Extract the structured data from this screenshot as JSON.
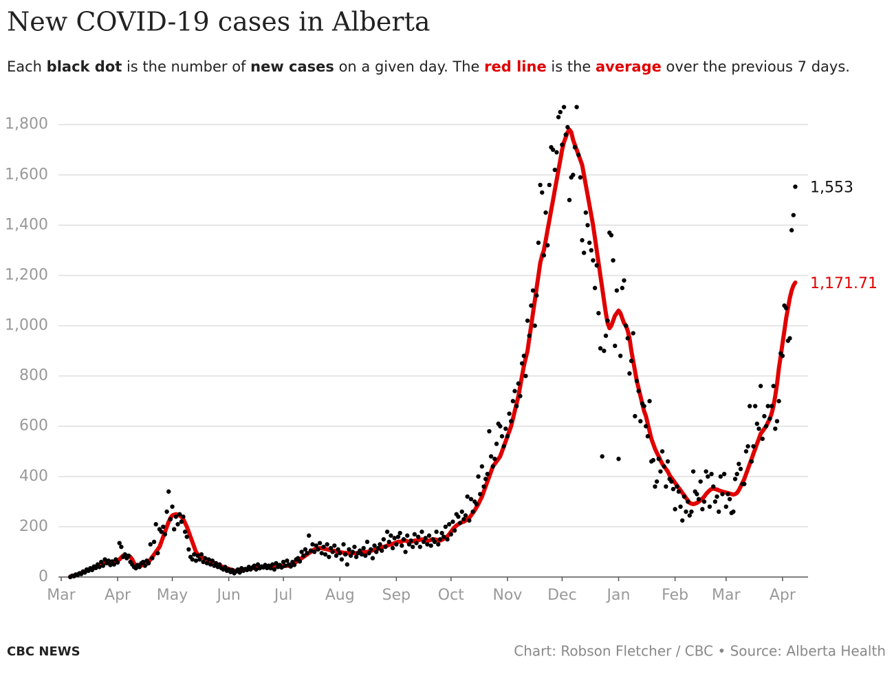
{
  "chart_data": {
    "type": "line",
    "title": "New COVID-19 cases in Alberta",
    "subtitle": [
      {
        "text": "Each "
      },
      {
        "text": "black dot",
        "bold": true
      },
      {
        "text": " is the number of "
      },
      {
        "text": "new cases",
        "bold": true
      },
      {
        "text": " on a given day. The "
      },
      {
        "text": "red line",
        "bold": true,
        "color": "#e00000"
      },
      {
        "text": " is the "
      },
      {
        "text": "average",
        "bold": true,
        "color": "#e00000"
      },
      {
        "text": " over the previous 7 days."
      }
    ],
    "brand": "CBC NEWS",
    "credit": "Chart: Robson Fletcher / CBC • Source: Alberta Health",
    "xlim": [
      -1.5,
      410
    ],
    "xticks": [
      {
        "value": 0,
        "label": "Mar"
      },
      {
        "value": 31,
        "label": "Apr"
      },
      {
        "value": 61,
        "label": "May"
      },
      {
        "value": 92,
        "label": "Jun"
      },
      {
        "value": 122,
        "label": "Jul"
      },
      {
        "value": 153,
        "label": "Aug"
      },
      {
        "value": 184,
        "label": "Sep"
      },
      {
        "value": 214,
        "label": "Oct"
      },
      {
        "value": 245,
        "label": "Nov"
      },
      {
        "value": 275,
        "label": "Dec"
      },
      {
        "value": 306,
        "label": "Jan"
      },
      {
        "value": 337,
        "label": "Feb"
      },
      {
        "value": 365,
        "label": "Mar"
      },
      {
        "value": 396,
        "label": "Apr"
      }
    ],
    "ylim": [
      0,
      1880
    ],
    "yticks": [
      0,
      200,
      400,
      600,
      800,
      {
        "value": 1000,
        "label": "1,000"
      },
      {
        "value": 1200,
        "label": "1,200"
      },
      {
        "value": 1400,
        "label": "1,400"
      },
      {
        "value": 1600,
        "label": "1,600"
      },
      {
        "value": 1800,
        "label": "1,800"
      }
    ],
    "grid": true,
    "end_labels": [
      "1,553",
      "1,171.71"
    ],
    "x": [
      5,
      6,
      7,
      8,
      9,
      10,
      11,
      12,
      13,
      14,
      15,
      16,
      17,
      18,
      19,
      20,
      21,
      22,
      23,
      24,
      25,
      26,
      27,
      28,
      29,
      30,
      31,
      32,
      33,
      34,
      35,
      36,
      37,
      38,
      39,
      40,
      41,
      42,
      43,
      44,
      45,
      46,
      47,
      48,
      49,
      50,
      51,
      52,
      53,
      54,
      55,
      56,
      57,
      58,
      59,
      60,
      61,
      62,
      63,
      64,
      65,
      66,
      67,
      68,
      69,
      70,
      71,
      72,
      73,
      74,
      75,
      76,
      77,
      78,
      79,
      80,
      81,
      82,
      83,
      84,
      85,
      86,
      87,
      88,
      89,
      90,
      91,
      92,
      93,
      94,
      95,
      96,
      97,
      98,
      99,
      100,
      101,
      102,
      103,
      104,
      105,
      106,
      107,
      108,
      109,
      110,
      111,
      112,
      113,
      114,
      115,
      116,
      117,
      118,
      119,
      120,
      121,
      122,
      123,
      124,
      125,
      126,
      127,
      128,
      129,
      130,
      131,
      132,
      133,
      134,
      135,
      136,
      137,
      138,
      139,
      140,
      141,
      142,
      143,
      144,
      145,
      146,
      147,
      148,
      149,
      150,
      151,
      152,
      153,
      154,
      155,
      156,
      157,
      158,
      159,
      160,
      161,
      162,
      163,
      164,
      165,
      166,
      167,
      168,
      169,
      170,
      171,
      172,
      173,
      174,
      175,
      176,
      177,
      178,
      179,
      180,
      181,
      182,
      183,
      184,
      185,
      186,
      187,
      188,
      189,
      190,
      191,
      192,
      193,
      194,
      195,
      196,
      197,
      198,
      199,
      200,
      201,
      202,
      203,
      204,
      205,
      206,
      207,
      208,
      209,
      210,
      211,
      212,
      213,
      214,
      215,
      216,
      217,
      218,
      219,
      220,
      221,
      222,
      223,
      224,
      225,
      226,
      227,
      228,
      229,
      230,
      231,
      232,
      233,
      234,
      235,
      236,
      237,
      238,
      239,
      240,
      241,
      242,
      243,
      244,
      245,
      246,
      247,
      248,
      249,
      250,
      251,
      252,
      253,
      254,
      255,
      256,
      257,
      258,
      259,
      260,
      261,
      262,
      263,
      264,
      265,
      266,
      267,
      268,
      269,
      270,
      271,
      272,
      273,
      274,
      275,
      276,
      277,
      278,
      279,
      280,
      281,
      282,
      283,
      284,
      285,
      286,
      287,
      288,
      289,
      290,
      291,
      292,
      293,
      294,
      295,
      296,
      297,
      298,
      299,
      300,
      301,
      302,
      303,
      304,
      305,
      306,
      307,
      308,
      309,
      310,
      311,
      312,
      313,
      314,
      315,
      316,
      317,
      318,
      319,
      320,
      321,
      322,
      323,
      324,
      325,
      326,
      327,
      328,
      329,
      330,
      331,
      332,
      333,
      334,
      335,
      336,
      337,
      338,
      339,
      340,
      341,
      342,
      343,
      344,
      345,
      346,
      347,
      348,
      349,
      350,
      351,
      352,
      353,
      354,
      355,
      356,
      357,
      358,
      359,
      360,
      361,
      362,
      363,
      364,
      365,
      366,
      367,
      368,
      369,
      370,
      371,
      372,
      373,
      374,
      375,
      376,
      377,
      378,
      379,
      380,
      381,
      382,
      383,
      384,
      385,
      386,
      387,
      388,
      389,
      390,
      391,
      392,
      393,
      394,
      395,
      396,
      397,
      398,
      399,
      400,
      401,
      402,
      403
    ],
    "series": [
      {
        "name": "New cases",
        "style": "dots",
        "color": "#000000",
        "values": [
          0,
          5,
          3,
          10,
          8,
          15,
          12,
          22,
          18,
          30,
          25,
          35,
          28,
          42,
          36,
          50,
          40,
          60,
          45,
          70,
          55,
          65,
          48,
          62,
          50,
          70,
          58,
          135,
          120,
          80,
          90,
          75,
          85,
          60,
          50,
          40,
          35,
          48,
          40,
          55,
          60,
          45,
          65,
          55,
          130,
          75,
          140,
          210,
          95,
          190,
          180,
          200,
          170,
          260,
          340,
          230,
          280,
          190,
          240,
          210,
          250,
          220,
          240,
          180,
          160,
          110,
          80,
          70,
          90,
          65,
          85,
          70,
          90,
          60,
          75,
          55,
          70,
          50,
          65,
          45,
          55,
          40,
          50,
          35,
          30,
          40,
          25,
          30,
          20,
          28,
          15,
          22,
          30,
          18,
          35,
          25,
          32,
          28,
          40,
          30,
          38,
          45,
          30,
          50,
          35,
          42,
          38,
          48,
          36,
          45,
          35,
          50,
          30,
          55,
          40,
          48,
          38,
          60,
          45,
          65,
          50,
          42,
          60,
          48,
          70,
          75,
          62,
          100,
          85,
          110,
          95,
          165,
          105,
          130,
          100,
          125,
          110,
          135,
          95,
          120,
          90,
          130,
          80,
          115,
          100,
          125,
          85,
          110,
          95,
          70,
          130,
          90,
          50,
          110,
          85,
          100,
          120,
          80,
          95,
          105,
          90,
          115,
          85,
          140,
          95,
          110,
          75,
          125,
          100,
          115,
          130,
          105,
          150,
          120,
          180,
          140,
          165,
          115,
          155,
          130,
          160,
          175,
          125,
          150,
          100,
          165,
          130,
          145,
          120,
          170,
          135,
          160,
          120,
          180,
          140,
          155,
          130,
          165,
          125,
          150,
          140,
          180,
          130,
          150,
          175,
          160,
          200,
          150,
          210,
          170,
          220,
          185,
          250,
          240,
          215,
          260,
          230,
          245,
          320,
          225,
          310,
          260,
          300,
          290,
          400,
          330,
          440,
          360,
          390,
          410,
          580,
          480,
          440,
          470,
          530,
          610,
          600,
          560,
          520,
          590,
          560,
          650,
          620,
          700,
          740,
          680,
          770,
          720,
          850,
          880,
          800,
          1020,
          960,
          1080,
          1140,
          1000,
          1120,
          1330,
          1560,
          1530,
          1280,
          1450,
          1320,
          1560,
          1710,
          1700,
          1620,
          1690,
          1830,
          1850,
          1720,
          1870,
          1760,
          1790,
          1500,
          1590,
          1600,
          1710,
          1870,
          1680,
          1590,
          1340,
          1290,
          1450,
          1400,
          1330,
          1300,
          1260,
          1150,
          1240,
          1050,
          910,
          480,
          900,
          960,
          1020,
          1370,
          1360,
          1260,
          920,
          1140,
          470,
          880,
          1150,
          1180,
          1000,
          950,
          810,
          860,
          970,
          640,
          780,
          740,
          620,
          690,
          680,
          600,
          560,
          700,
          460,
          465,
          360,
          380,
          470,
          420,
          500,
          440,
          360,
          460,
          390,
          380,
          350,
          270,
          360,
          340,
          280,
          225,
          320,
          260,
          300,
          245,
          260,
          420,
          340,
          330,
          310,
          380,
          270,
          300,
          420,
          400,
          280,
          410,
          360,
          300,
          320,
          260,
          400,
          330,
          410,
          280,
          330,
          310,
          255,
          260,
          390,
          410,
          450,
          430,
          370,
          370,
          500,
          520,
          680,
          460,
          520,
          680,
          610,
          590,
          760,
          550,
          640,
          600,
          680,
          630,
          680,
          760,
          590,
          620,
          700,
          890,
          880,
          1080,
          1070,
          940,
          950,
          1380,
          1440,
          1553
        ]
      },
      {
        "name": "7-day average",
        "style": "line",
        "color": "#e00000",
        "values": [
          2,
          4,
          6,
          8,
          10,
          13,
          16,
          19,
          22,
          25,
          28,
          30,
          33,
          36,
          40,
          44,
          48,
          52,
          55,
          58,
          60,
          58,
          55,
          55,
          58,
          62,
          65,
          70,
          78,
          85,
          85,
          84,
          82,
          80,
          70,
          55,
          45,
          42,
          44,
          46,
          48,
          50,
          52,
          60,
          70,
          80,
          90,
          100,
          110,
          120,
          140,
          160,
          180,
          200,
          220,
          235,
          245,
          248,
          250,
          248,
          245,
          240,
          230,
          215,
          200,
          180,
          160,
          140,
          120,
          100,
          90,
          85,
          80,
          76,
          73,
          70,
          67,
          64,
          60,
          56,
          52,
          48,
          45,
          42,
          40,
          38,
          35,
          32,
          30,
          28,
          25,
          25,
          26,
          27,
          28,
          29,
          30,
          31,
          32,
          34,
          35,
          36,
          37,
          38,
          39,
          40,
          40,
          41,
          42,
          42,
          40,
          40,
          42,
          44,
          45,
          45,
          44,
          43,
          45,
          45,
          45,
          48,
          52,
          56,
          60,
          65,
          70,
          75,
          80,
          85,
          90,
          95,
          100,
          105,
          110,
          112,
          114,
          115,
          115,
          113,
          112,
          110,
          108,
          106,
          105,
          104,
          102,
          100,
          99,
          98,
          97,
          96,
          95,
          94,
          95,
          96,
          95,
          95,
          96,
          97,
          98,
          99,
          100,
          100,
          102,
          104,
          106,
          108,
          110,
          112,
          115,
          118,
          120,
          122,
          125,
          128,
          130,
          132,
          135,
          138,
          140,
          140,
          142,
          145,
          145,
          142,
          140,
          140,
          142,
          145,
          145,
          146,
          148,
          150,
          148,
          146,
          145,
          145,
          148,
          150,
          150,
          148,
          146,
          145,
          148,
          152,
          156,
          162,
          170,
          180,
          190,
          198,
          205,
          210,
          215,
          218,
          220,
          225,
          230,
          235,
          245,
          255,
          265,
          278,
          290,
          305,
          320,
          340,
          360,
          380,
          400,
          420,
          440,
          450,
          460,
          470,
          480,
          500,
          520,
          540,
          560,
          580,
          600,
          630,
          660,
          690,
          720,
          760,
          800,
          840,
          870,
          900,
          950,
          1000,
          1050,
          1100,
          1150,
          1200,
          1250,
          1280,
          1300,
          1340,
          1380,
          1420,
          1460,
          1500,
          1540,
          1580,
          1620,
          1660,
          1700,
          1730,
          1750,
          1770,
          1780,
          1770,
          1740,
          1720,
          1700,
          1680,
          1660,
          1640,
          1600,
          1560,
          1520,
          1480,
          1440,
          1400,
          1350,
          1300,
          1250,
          1200,
          1150,
          1100,
          1050,
          1010,
          990,
          1000,
          1020,
          1040,
          1050,
          1060,
          1050,
          1030,
          1010,
          1000,
          980,
          950,
          900,
          860,
          820,
          780,
          750,
          720,
          690,
          660,
          640,
          610,
          580,
          550,
          530,
          510,
          495,
          480,
          465,
          450,
          440,
          430,
          420,
          405,
          395,
          385,
          375,
          365,
          355,
          345,
          335,
          325,
          315,
          305,
          295,
          292,
          290,
          292,
          295,
          300,
          305,
          312,
          320,
          330,
          338,
          345,
          350,
          352,
          350,
          348,
          345,
          342,
          340,
          338,
          336,
          334,
          332,
          330,
          328,
          330,
          335,
          345,
          360,
          375,
          390,
          410,
          430,
          450,
          470,
          490,
          510,
          530,
          550,
          570,
          580,
          590,
          600,
          615,
          630,
          650,
          680,
          720,
          770,
          830,
          880,
          930,
          980,
          1030,
          1070,
          1110,
          1140,
          1160,
          1171.71
        ]
      }
    ]
  }
}
